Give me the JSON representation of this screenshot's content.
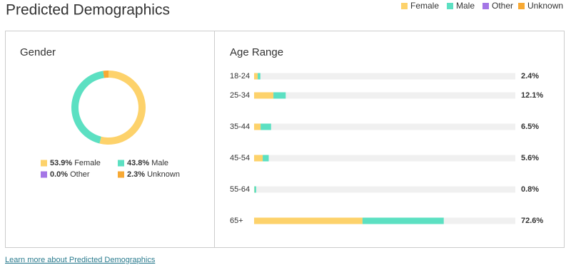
{
  "title": "Predicted Demographics",
  "legend": [
    {
      "name": "Female",
      "color": "#fdd26b"
    },
    {
      "name": "Male",
      "color": "#5ce0c2"
    },
    {
      "name": "Other",
      "color": "#a476e6"
    },
    {
      "name": "Unknown",
      "color": "#f7a934"
    }
  ],
  "chart_data": [
    {
      "type": "pie",
      "title": "Gender",
      "categories": [
        "Female",
        "Male",
        "Other",
        "Unknown"
      ],
      "values": [
        53.9,
        43.8,
        0.0,
        2.3
      ],
      "value_labels": [
        "53.9%",
        "43.8%",
        "0.0%",
        "2.3%"
      ],
      "colors": [
        "#fdd26b",
        "#5ce0c2",
        "#a476e6",
        "#f7a934"
      ]
    },
    {
      "type": "bar",
      "title": "Age Range",
      "orientation": "horizontal",
      "stacked": true,
      "categories": [
        "18-24",
        "25-34",
        "35-44",
        "45-54",
        "55-64",
        "65+"
      ],
      "series": [
        {
          "name": "Female",
          "color": "#fdd26b",
          "values": [
            1.4,
            7.4,
            2.5,
            3.3,
            0.1,
            41.5
          ]
        },
        {
          "name": "Male",
          "color": "#5ce0c2",
          "values": [
            1.0,
            4.7,
            4.0,
            2.3,
            0.7,
            31.1
          ]
        }
      ],
      "totals": [
        2.4,
        12.1,
        6.5,
        5.6,
        0.8,
        72.6
      ],
      "total_labels": [
        "2.4%",
        "12.1%",
        "6.5%",
        "5.6%",
        "0.8%",
        "72.6%"
      ],
      "xlim": [
        0,
        100
      ]
    }
  ],
  "link": "Learn more about Predicted Demographics"
}
